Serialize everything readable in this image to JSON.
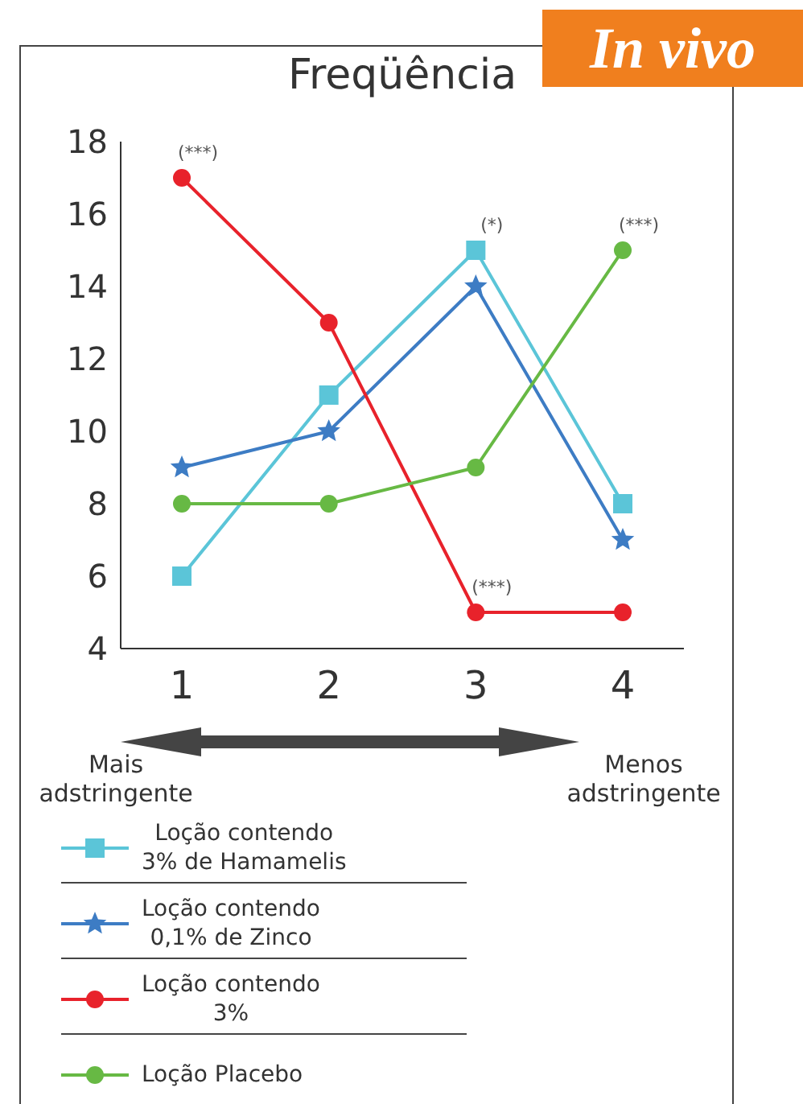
{
  "chart_data": {
    "type": "line",
    "title": "Freqüência",
    "subtitle": "In vivo",
    "categories": [
      "1",
      "2",
      "3",
      "4"
    ],
    "series": [
      {
        "name": "Loção contendo 3% de Hamamelis",
        "color": "#5bc5d8",
        "marker": "square",
        "values": [
          6,
          11,
          15,
          8
        ]
      },
      {
        "name": "Loção contendo 0,1% de Zinco",
        "color": "#3d7cc4",
        "marker": "star",
        "values": [
          9,
          10,
          14,
          7
        ]
      },
      {
        "name": "Loção contendo 3%",
        "color": "#e8222b",
        "marker": "circle",
        "values": [
          17,
          13,
          5,
          5
        ]
      },
      {
        "name": "Loção Placebo",
        "color": "#67b944",
        "marker": "circle",
        "values": [
          8,
          8,
          9,
          15
        ]
      }
    ],
    "ylim": [
      4,
      18
    ],
    "yticks": [
      4,
      6,
      8,
      10,
      12,
      14,
      16,
      18
    ],
    "legend": "bottom",
    "line_style": "solid",
    "annotations": [
      {
        "text": "(***)",
        "x": "1",
        "y": 17
      },
      {
        "text": "(*)",
        "x": "3",
        "y": 15
      },
      {
        "text": "(***)",
        "x": "4",
        "y": 15
      },
      {
        "text": "(***)",
        "x": "3",
        "y": 5
      },
      "Mais adstringente",
      "Menos adstringente"
    ]
  }
}
